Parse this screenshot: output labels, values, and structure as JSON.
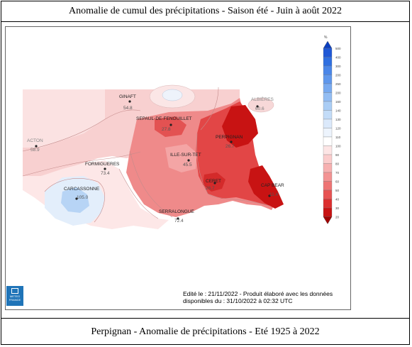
{
  "header": {
    "title": "Anomalie de cumul des précipitations - Saison été - Juin à août  2022"
  },
  "footer": {
    "caption": "Perpignan - Anomalie de précipitations - Eté 1925 à 2022"
  },
  "map": {
    "stations": [
      {
        "name": "GINAFT",
        "value": "54.8"
      },
      {
        "name": "SEPAUL-DE-FENOUILLET",
        "value": "27.8"
      },
      {
        "name": "PERPIGNAN",
        "value": "26.7"
      },
      {
        "name": "ILLE-SUR-TET",
        "value": "45.5"
      },
      {
        "name": "FORMIGUERES",
        "value": "73.4"
      },
      {
        "name": "CARCASSONNE",
        "value": "105.0"
      },
      {
        "name": "AXAT",
        "value": "54.8"
      },
      {
        "name": "CERET",
        "value": "26.7"
      },
      {
        "name": "CAP BEAR",
        "value": "11.4"
      },
      {
        "name": "SERRALONGUE",
        "value": "72.4"
      },
      {
        "name": "ALBIÈRES",
        "value": "60.6"
      },
      {
        "name": "ACTON",
        "value": "58.9"
      }
    ],
    "credits_line1": "Edité le : 21/11/2022 - Produit élaboré avec les données",
    "credits_line2": "disponibles du : 31/10/2022 à 02:32 UTC",
    "logo_text": "METEO FRANCE",
    "legend": {
      "unit": "%",
      "levels": [
        "500",
        "400",
        "300",
        "200",
        "250",
        "200",
        "160",
        "140",
        "130",
        "120",
        "110",
        "100",
        "90",
        "80",
        "70",
        "60",
        "50",
        "40",
        "30",
        "20"
      ],
      "colors": [
        "#0b3fbf",
        "#1f58d6",
        "#2f6fe0",
        "#4a86e8",
        "#5f97ec",
        "#78aaf0",
        "#93bdf3",
        "#aacdf5",
        "#c3dcf8",
        "#dbe9fb",
        "#edf4fd",
        "#ffffff",
        "#fde5e5",
        "#fbcccc",
        "#f7b0b0",
        "#f39393",
        "#ee7474",
        "#e75353",
        "#dc2f2f",
        "#c81313",
        "#a00000"
      ]
    }
  }
}
